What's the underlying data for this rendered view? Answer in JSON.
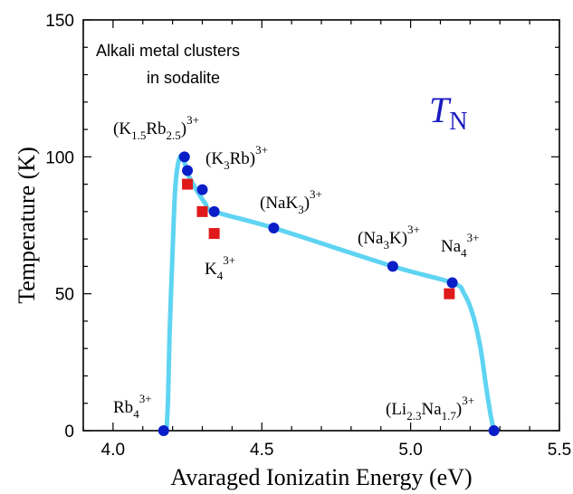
{
  "chart_data": {
    "type": "scatter",
    "xlabel": "Avaraged Ionizatin Energy (eV)",
    "ylabel": "Temperature (K)",
    "xlim": [
      3.9,
      5.5
    ],
    "ylim": [
      0,
      150
    ],
    "xticks": [
      4.0,
      4.5,
      5.0,
      5.5
    ],
    "xtick_labels": [
      "4.0",
      "4.5",
      "5.0",
      "5.5"
    ],
    "yticks": [
      0,
      50,
      100,
      150
    ],
    "ytick_labels": [
      "0",
      "50",
      "100",
      "150"
    ],
    "legend": "none",
    "grid": false,
    "annotations": {
      "title_line1": "Alkali metal clusters",
      "title_line2": "in sodalite",
      "tn_T": "T",
      "tn_N": "N"
    },
    "labels": [
      {
        "id": "k15rb25",
        "open": "(K",
        "s1": "1.5",
        "mid": "Rb",
        "s2": "2.5",
        "close": ")",
        "sup": "3+"
      },
      {
        "id": "k3rb",
        "open": "(K",
        "s1": "3",
        "mid": "Rb)",
        "sup": "3+"
      },
      {
        "id": "nak3",
        "open": "(NaK",
        "s1": "3",
        "close": ")",
        "sup": "3+"
      },
      {
        "id": "na3k",
        "open": "(Na",
        "s1": "3",
        "mid": "K)",
        "sup": "3+"
      },
      {
        "id": "na4",
        "open": "Na",
        "s1": "4",
        "sup": "3+"
      },
      {
        "id": "k4",
        "open": "K",
        "s1": "4",
        "sup": "3+"
      },
      {
        "id": "rb4",
        "open": "Rb",
        "s1": "4",
        "sup": "3+"
      },
      {
        "id": "li23na17",
        "open": "(Li",
        "s1": "2.3",
        "mid": "Na",
        "s2": "1.7",
        "close": ")",
        "sup": "3+"
      }
    ],
    "series": [
      {
        "marker": "circle",
        "color": "#0a1ec8",
        "points": [
          {
            "x": 4.17,
            "y": 0
          },
          {
            "x": 4.24,
            "y": 100
          },
          {
            "x": 4.25,
            "y": 95
          },
          {
            "x": 4.3,
            "y": 88
          },
          {
            "x": 4.34,
            "y": 80
          },
          {
            "x": 4.54,
            "y": 74
          },
          {
            "x": 4.94,
            "y": 60
          },
          {
            "x": 5.14,
            "y": 54
          },
          {
            "x": 5.28,
            "y": 0
          }
        ]
      },
      {
        "marker": "square",
        "color": "#e01a1a",
        "points": [
          {
            "x": 4.25,
            "y": 90
          },
          {
            "x": 4.3,
            "y": 80
          },
          {
            "x": 4.34,
            "y": 72
          },
          {
            "x": 5.13,
            "y": 50
          }
        ]
      }
    ],
    "curve": {
      "color": "#5fd4f2",
      "points": [
        {
          "x": 4.18,
          "y": 0
        },
        {
          "x": 4.185,
          "y": 12
        },
        {
          "x": 4.19,
          "y": 35
        },
        {
          "x": 4.2,
          "y": 65
        },
        {
          "x": 4.21,
          "y": 90
        },
        {
          "x": 4.225,
          "y": 100
        },
        {
          "x": 4.24,
          "y": 98
        },
        {
          "x": 4.25,
          "y": 94
        },
        {
          "x": 4.28,
          "y": 88
        },
        {
          "x": 4.31,
          "y": 83
        },
        {
          "x": 4.34,
          "y": 80
        },
        {
          "x": 4.54,
          "y": 74
        },
        {
          "x": 4.94,
          "y": 60
        },
        {
          "x": 5.14,
          "y": 54
        },
        {
          "x": 5.18,
          "y": 50
        },
        {
          "x": 5.21,
          "y": 42
        },
        {
          "x": 5.235,
          "y": 30
        },
        {
          "x": 5.255,
          "y": 15
        },
        {
          "x": 5.27,
          "y": 5
        },
        {
          "x": 5.28,
          "y": 0
        }
      ]
    }
  }
}
